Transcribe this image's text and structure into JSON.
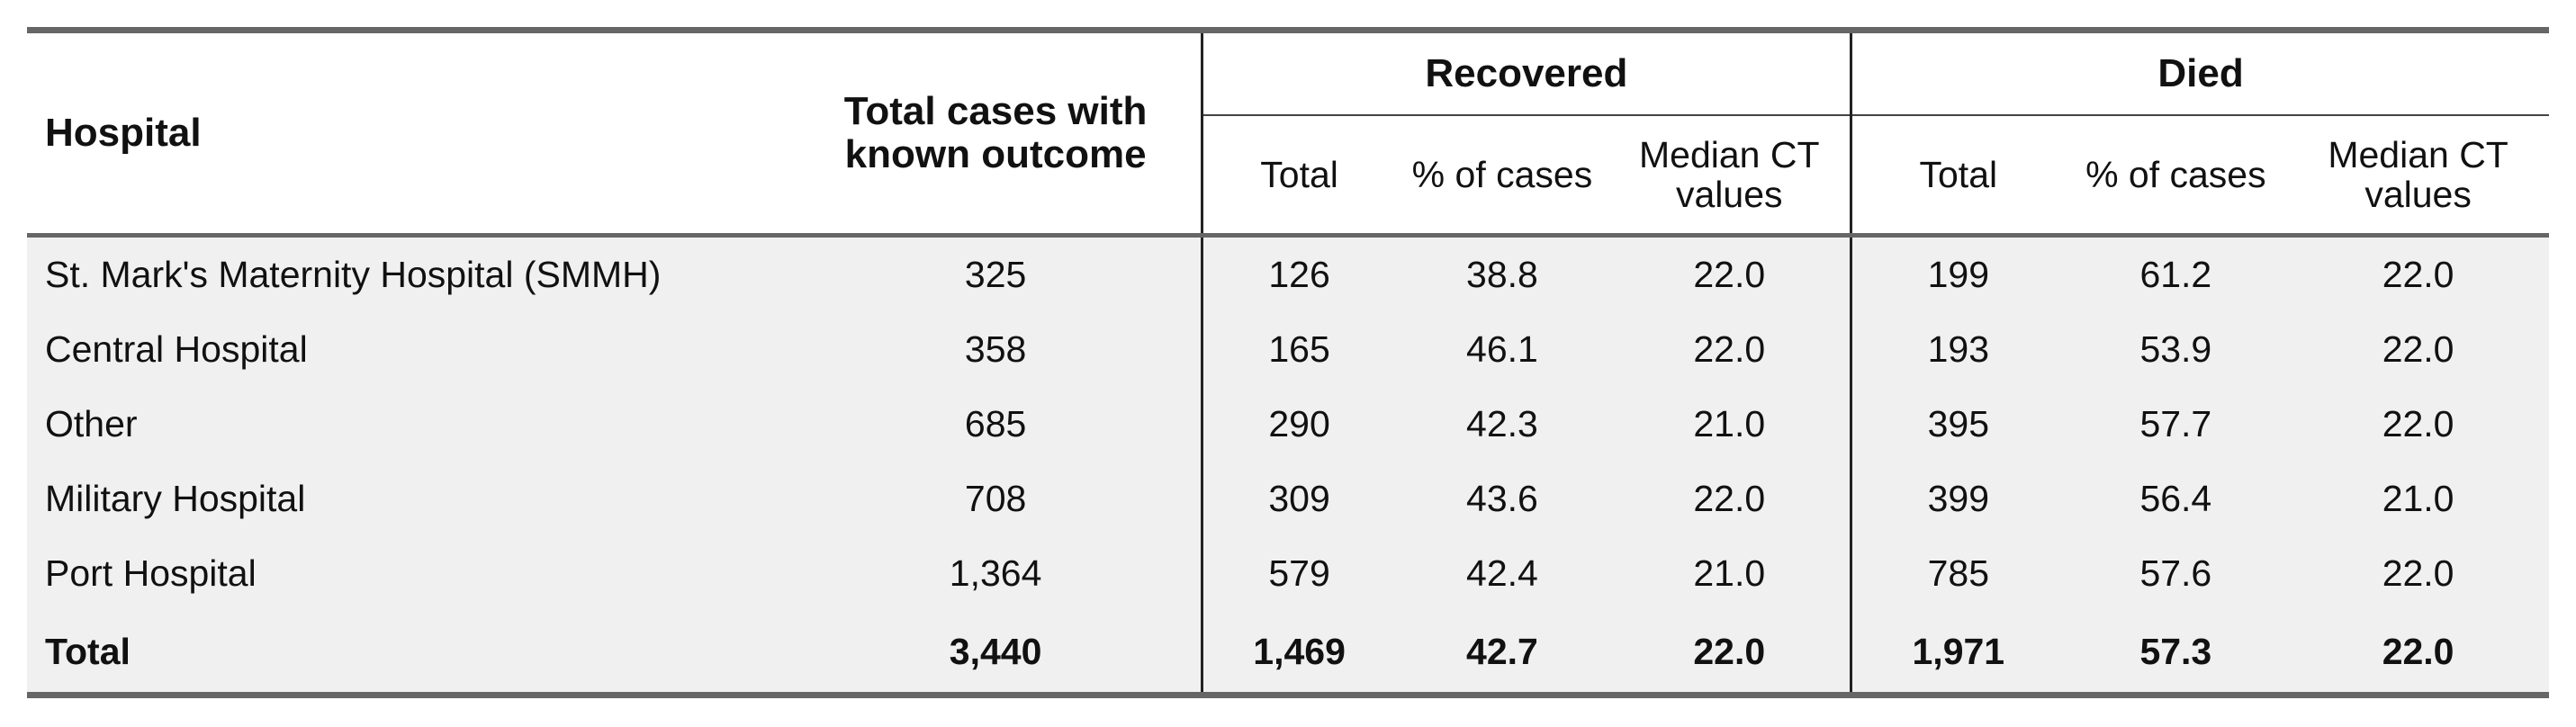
{
  "table": {
    "headers": {
      "hospital": "Hospital",
      "total_cases": "Total cases with known outcome",
      "recovered_group": "Recovered",
      "died_group": "Died",
      "sub_total": "Total",
      "sub_pct": "% of cases",
      "sub_median": "Median CT values"
    },
    "rows": [
      {
        "hospital": "St. Mark's Maternity Hospital (SMMH)",
        "total": "325",
        "rec_total": "126",
        "rec_pct": "38.8",
        "rec_median": "22.0",
        "died_total": "199",
        "died_pct": "61.2",
        "died_median": "22.0"
      },
      {
        "hospital": "Central Hospital",
        "total": "358",
        "rec_total": "165",
        "rec_pct": "46.1",
        "rec_median": "22.0",
        "died_total": "193",
        "died_pct": "53.9",
        "died_median": "22.0"
      },
      {
        "hospital": "Other",
        "total": "685",
        "rec_total": "290",
        "rec_pct": "42.3",
        "rec_median": "21.0",
        "died_total": "395",
        "died_pct": "57.7",
        "died_median": "22.0"
      },
      {
        "hospital": "Military Hospital",
        "total": "708",
        "rec_total": "309",
        "rec_pct": "43.6",
        "rec_median": "22.0",
        "died_total": "399",
        "died_pct": "56.4",
        "died_median": "21.0"
      },
      {
        "hospital": "Port Hospital",
        "total": "1,364",
        "rec_total": "579",
        "rec_pct": "42.4",
        "rec_median": "21.0",
        "died_total": "785",
        "died_pct": "57.6",
        "died_median": "22.0"
      }
    ],
    "total_row": {
      "hospital": "Total",
      "total": "3,440",
      "rec_total": "1,469",
      "rec_pct": "42.7",
      "rec_median": "22.0",
      "died_total": "1,971",
      "died_pct": "57.3",
      "died_median": "22.0"
    }
  }
}
